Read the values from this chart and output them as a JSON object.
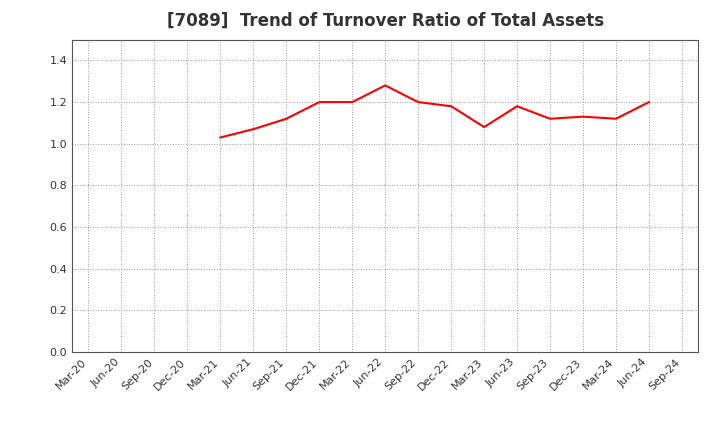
{
  "title": "[7089]  Trend of Turnover Ratio of Total Assets",
  "x_labels": [
    "Mar-20",
    "Jun-20",
    "Sep-20",
    "Dec-20",
    "Mar-21",
    "Jun-21",
    "Sep-21",
    "Dec-21",
    "Mar-22",
    "Jun-22",
    "Sep-22",
    "Dec-22",
    "Mar-23",
    "Jun-23",
    "Sep-23",
    "Dec-23",
    "Mar-24",
    "Jun-24",
    "Sep-24"
  ],
  "y_values": [
    null,
    null,
    null,
    null,
    1.03,
    1.07,
    1.12,
    1.2,
    1.2,
    1.28,
    1.2,
    1.18,
    1.08,
    1.18,
    1.12,
    1.13,
    1.12,
    1.2,
    null
  ],
  "line_color": "#ff0000",
  "line_width": 1.5,
  "ylim": [
    0.0,
    1.5
  ],
  "yticks": [
    0.0,
    0.2,
    0.4,
    0.6,
    0.8,
    1.0,
    1.2,
    1.4
  ],
  "background_color": "#ffffff",
  "plot_bg_color": "#ffffff",
  "grid_color": "#999999",
  "title_fontsize": 12,
  "tick_fontsize": 8,
  "title_color": "#333333"
}
